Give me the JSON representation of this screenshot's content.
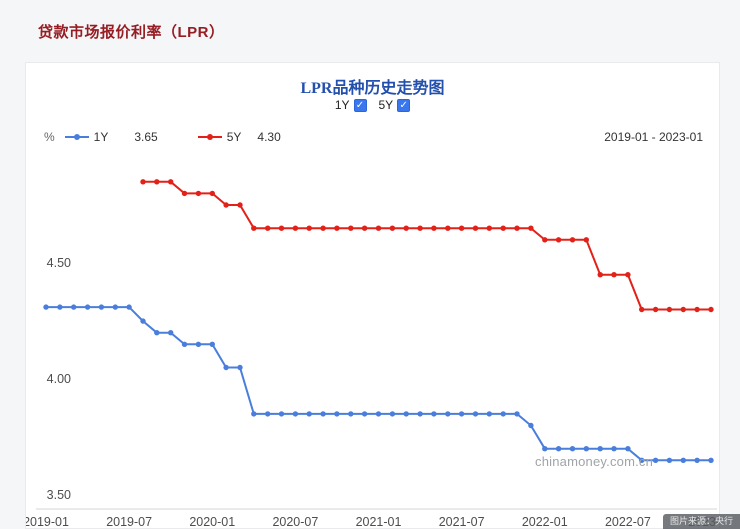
{
  "page": {
    "title": "贷款市场报价利率（LPR）"
  },
  "panel": {
    "chart_title": "LPR品种历史走势图",
    "toggles": [
      {
        "label": "1Y",
        "checked": true
      },
      {
        "label": "5Y",
        "checked": true
      }
    ],
    "unit": "%",
    "legend": [
      {
        "name": "1Y",
        "value": "3.65",
        "color": "#4a7edc"
      },
      {
        "name": "5Y",
        "value": "4.30",
        "color": "#e22118"
      }
    ],
    "range": "2019-01 - 2023-01",
    "watermark": "chinamoney.com.cn",
    "corner_badge": "图片来源：央行"
  },
  "chart_data": {
    "type": "line",
    "title": "LPR品种历史走势图",
    "xlabel": "",
    "ylabel": "%",
    "ylim": [
      3.44,
      4.97
    ],
    "grid": false,
    "legend_position": "top-left",
    "x_tick_interval": 6,
    "yticks": [
      {
        "label": "3.50",
        "value": 3.5
      },
      {
        "label": "4.00",
        "value": 4.0
      },
      {
        "label": "4.50",
        "value": 4.5
      }
    ],
    "x": [
      "2019-01",
      "2019-02",
      "2019-03",
      "2019-04",
      "2019-05",
      "2019-06",
      "2019-07",
      "2019-08",
      "2019-09",
      "2019-10",
      "2019-11",
      "2019-12",
      "2020-01",
      "2020-02",
      "2020-03",
      "2020-04",
      "2020-05",
      "2020-06",
      "2020-07",
      "2020-08",
      "2020-09",
      "2020-10",
      "2020-11",
      "2020-12",
      "2021-01",
      "2021-02",
      "2021-03",
      "2021-04",
      "2021-05",
      "2021-06",
      "2021-07",
      "2021-08",
      "2021-09",
      "2021-10",
      "2021-11",
      "2021-12",
      "2022-01",
      "2022-02",
      "2022-03",
      "2022-04",
      "2022-05",
      "2022-06",
      "2022-07",
      "2022-08",
      "2022-09",
      "2022-10",
      "2022-11",
      "2022-12",
      "2023-01"
    ],
    "series": [
      {
        "name": "1Y",
        "color": "#4a7edc",
        "values": [
          4.31,
          4.31,
          4.31,
          4.31,
          4.31,
          4.31,
          4.31,
          4.25,
          4.2,
          4.2,
          4.15,
          4.15,
          4.15,
          4.05,
          4.05,
          3.85,
          3.85,
          3.85,
          3.85,
          3.85,
          3.85,
          3.85,
          3.85,
          3.85,
          3.85,
          3.85,
          3.85,
          3.85,
          3.85,
          3.85,
          3.85,
          3.85,
          3.85,
          3.85,
          3.85,
          3.8,
          3.7,
          3.7,
          3.7,
          3.7,
          3.7,
          3.7,
          3.7,
          3.65,
          3.65,
          3.65,
          3.65,
          3.65,
          3.65
        ]
      },
      {
        "name": "5Y",
        "color": "#e22118",
        "values": [
          null,
          null,
          null,
          null,
          null,
          null,
          null,
          4.85,
          4.85,
          4.85,
          4.8,
          4.8,
          4.8,
          4.75,
          4.75,
          4.65,
          4.65,
          4.65,
          4.65,
          4.65,
          4.65,
          4.65,
          4.65,
          4.65,
          4.65,
          4.65,
          4.65,
          4.65,
          4.65,
          4.65,
          4.65,
          4.65,
          4.65,
          4.65,
          4.65,
          4.65,
          4.6,
          4.6,
          4.6,
          4.6,
          4.45,
          4.45,
          4.45,
          4.3,
          4.3,
          4.3,
          4.3,
          4.3,
          4.3
        ]
      }
    ]
  }
}
